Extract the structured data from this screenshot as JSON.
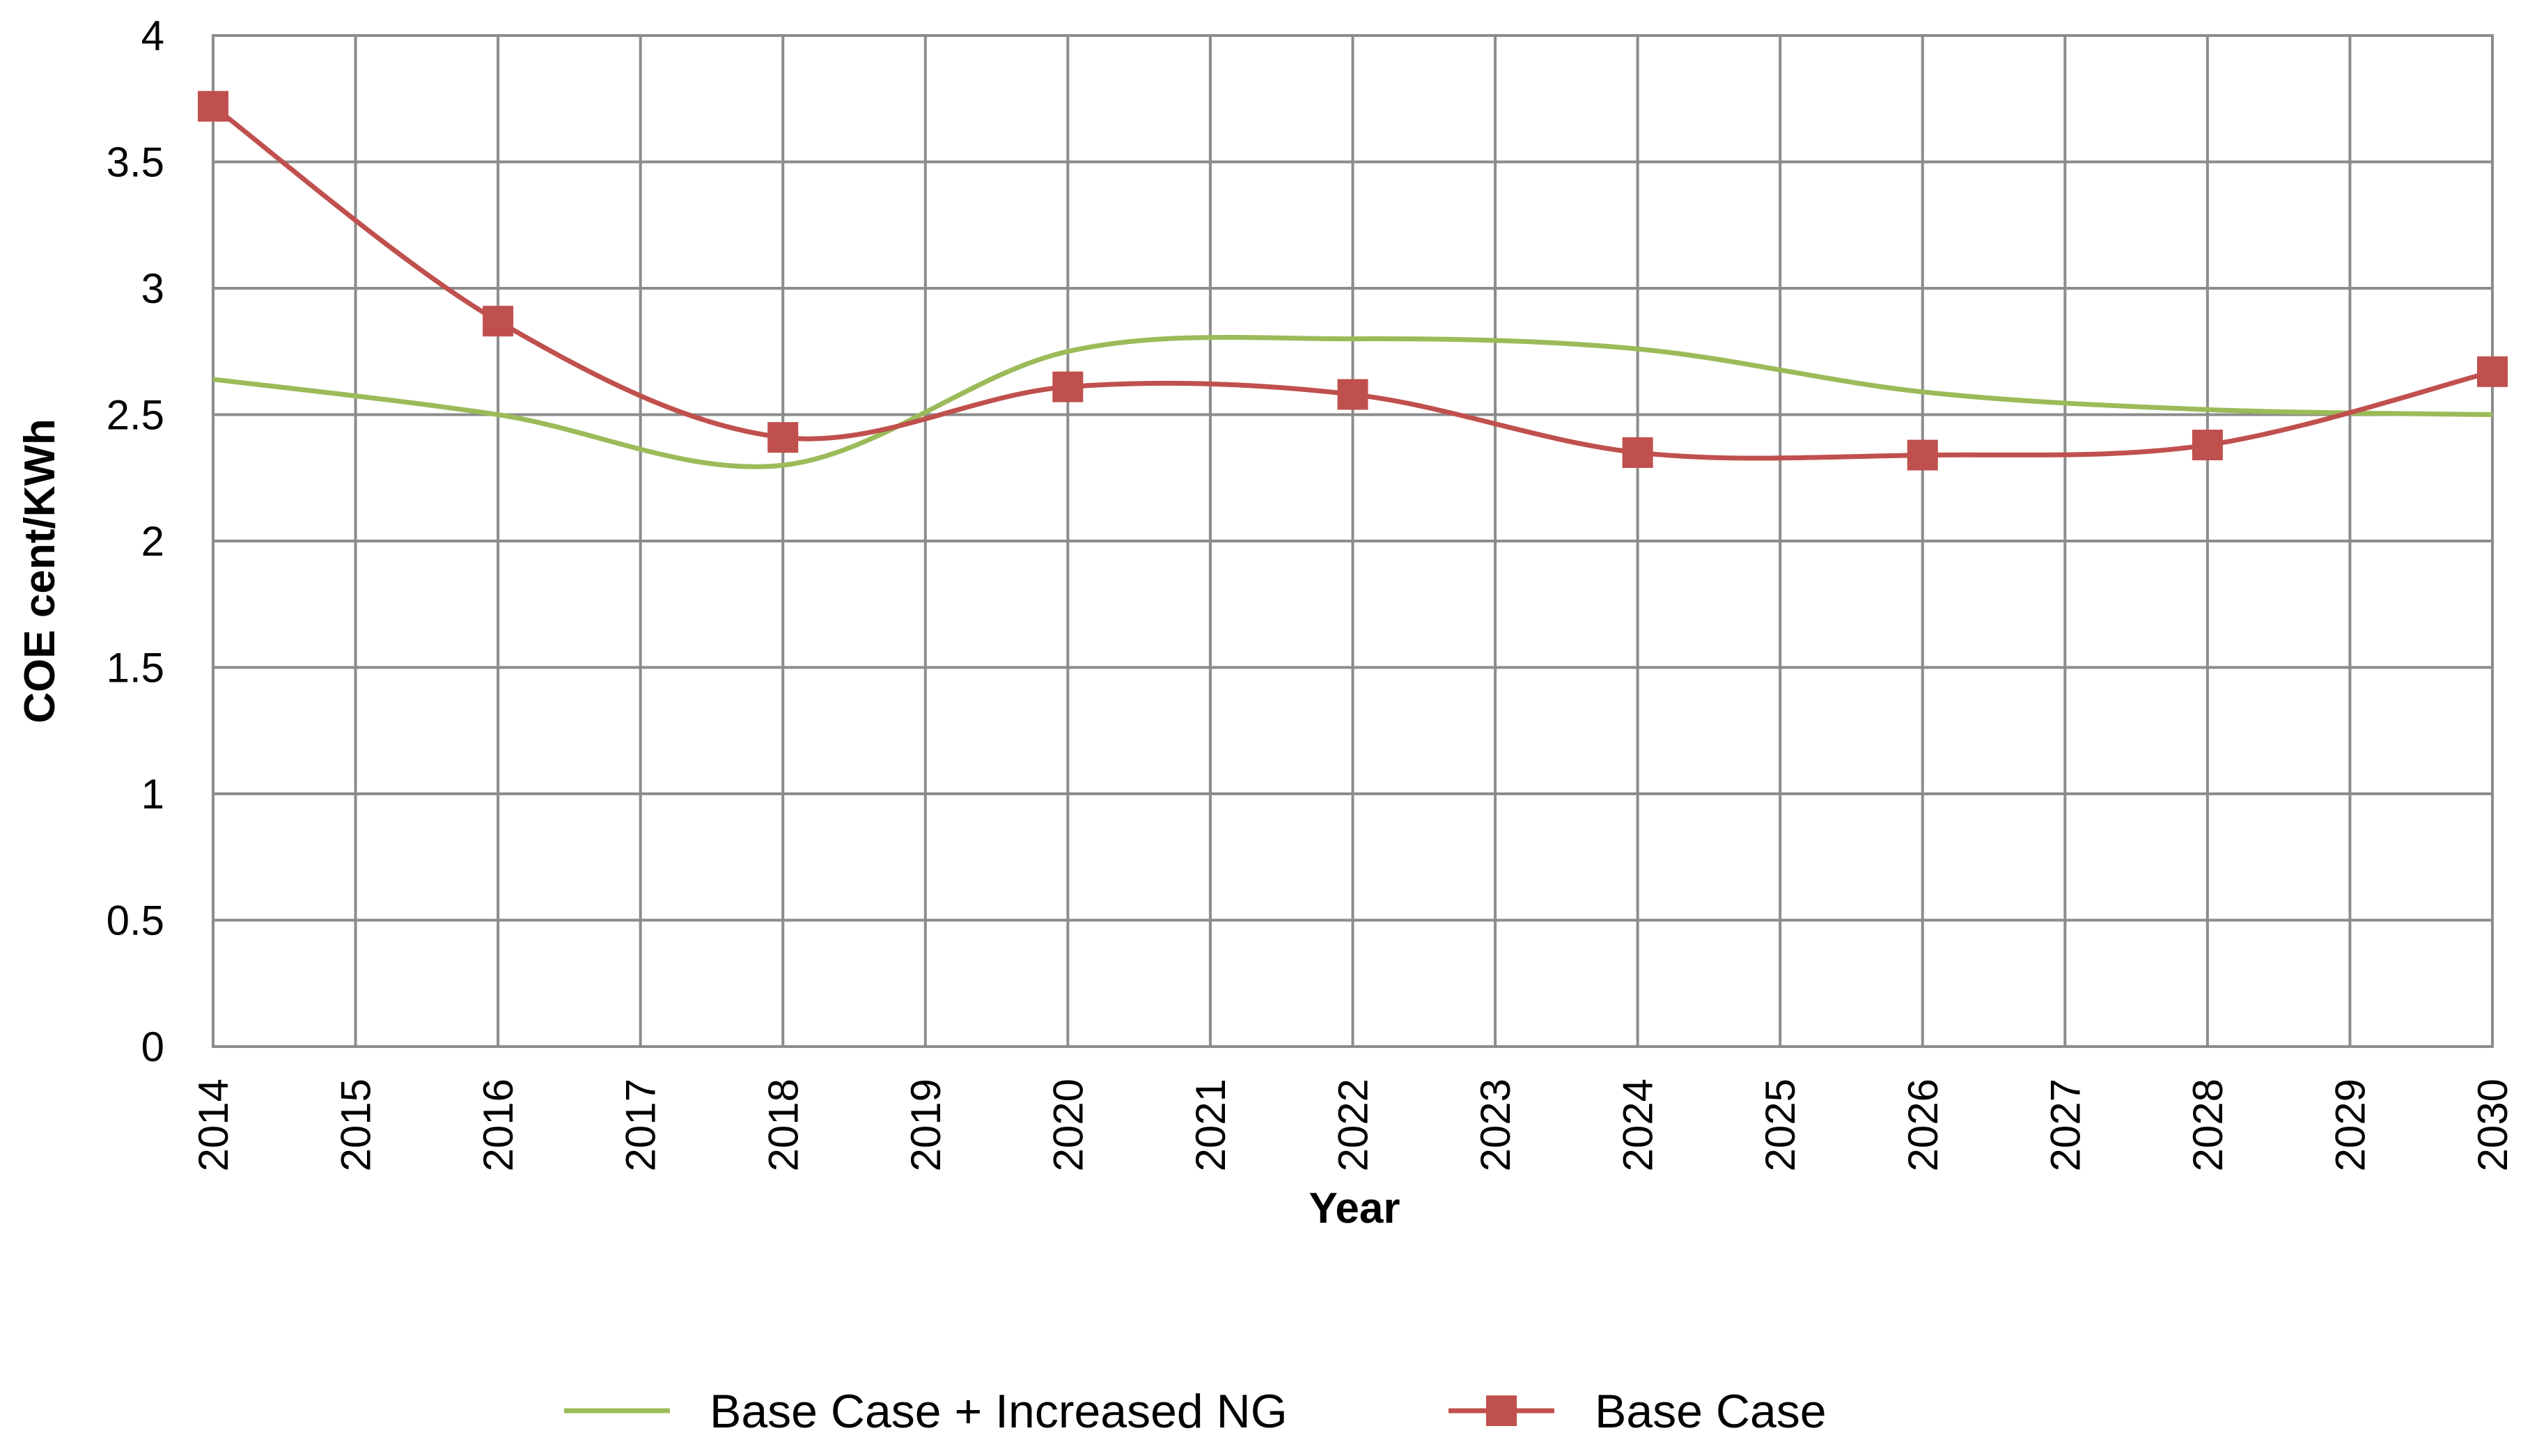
{
  "chart_data": {
    "type": "line",
    "xlabel": "Year",
    "ylabel": "COE cent/KWh",
    "x": [
      2014,
      2015,
      2016,
      2017,
      2018,
      2019,
      2020,
      2021,
      2022,
      2023,
      2024,
      2025,
      2026,
      2027,
      2028,
      2029,
      2030
    ],
    "ylim": [
      0,
      4
    ],
    "yticks": [
      "0",
      "0.5",
      "1",
      "1.5",
      "2",
      "2.5",
      "3",
      "3.5",
      "4"
    ],
    "grid": true,
    "smooth": true,
    "legend_position": "bottom",
    "series": [
      {
        "name": "Base Case + Increased NG",
        "color": "#9BBB59",
        "marker": "none",
        "x": [
          2014,
          2016,
          2018,
          2020,
          2022,
          2024,
          2026,
          2028,
          2030
        ],
        "values": [
          2.64,
          2.5,
          2.3,
          2.75,
          2.8,
          2.76,
          2.59,
          2.52,
          2.5
        ]
      },
      {
        "name": "Base Case",
        "color": "#C0504D",
        "marker": "square",
        "x": [
          2014,
          2016,
          2018,
          2020,
          2022,
          2024,
          2026,
          2028,
          2030
        ],
        "values": [
          3.72,
          2.87,
          2.41,
          2.61,
          2.58,
          2.35,
          2.34,
          2.38,
          2.67
        ]
      }
    ]
  }
}
